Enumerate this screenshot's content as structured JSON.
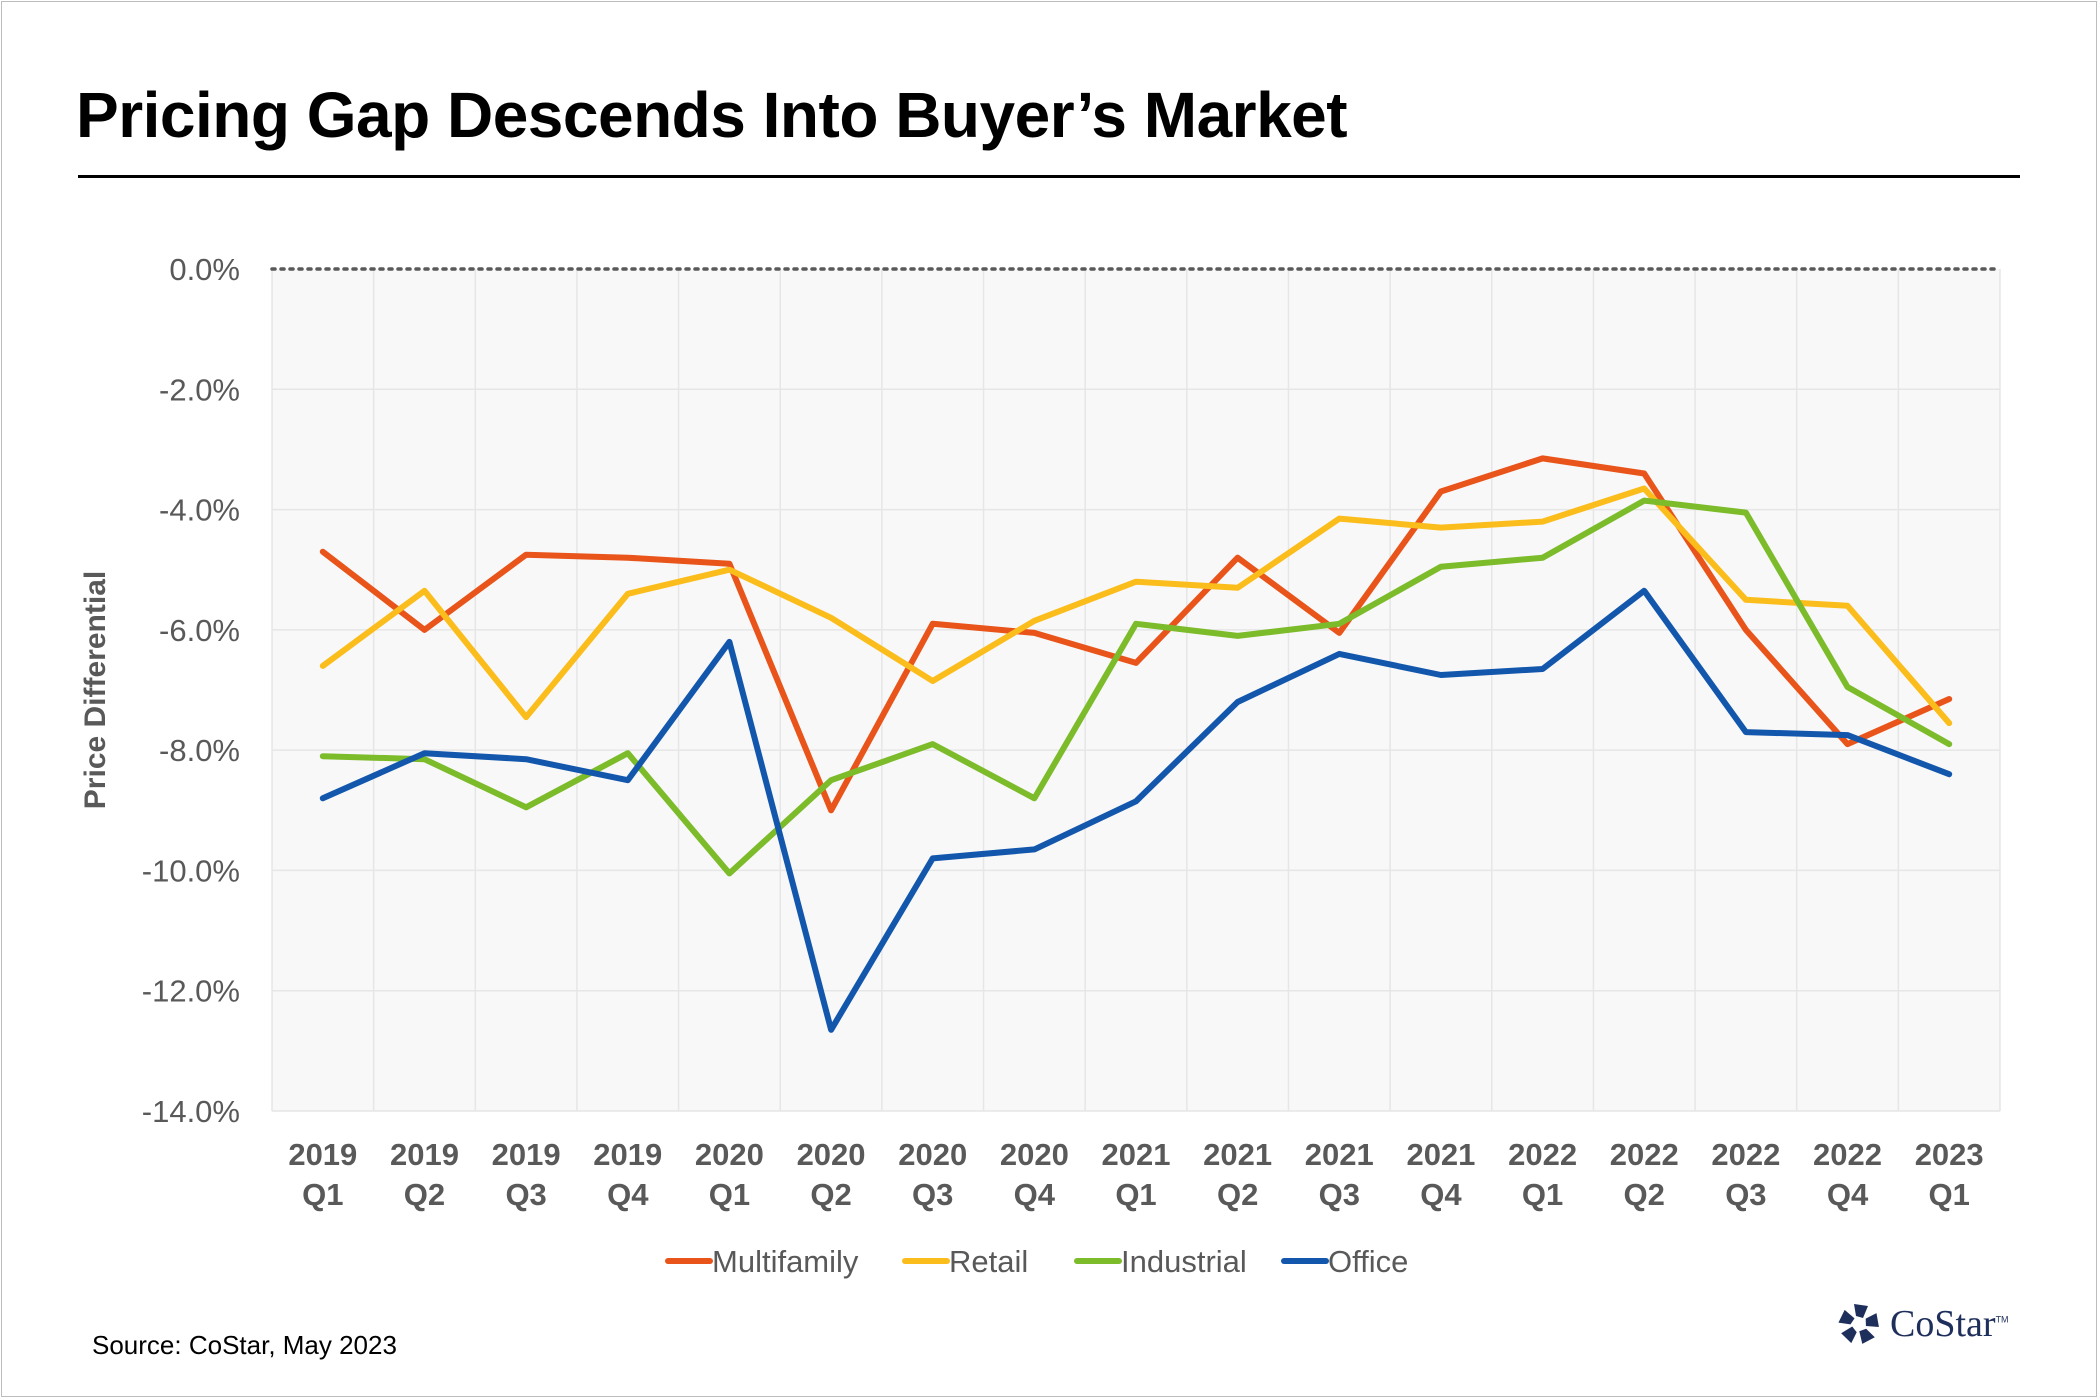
{
  "title": "Pricing Gap Descends Into Buyer’s Market",
  "source": "Source: CoStar, May 2023",
  "logo": {
    "text": "CoStar",
    "tm": "TM",
    "icon": "costar-star-icon"
  },
  "colors": {
    "Multifamily": "#e8541a",
    "Retail": "#fbbd1c",
    "Industrial": "#7cbb2a",
    "Office": "#1357ad",
    "axis_text": "#595959",
    "grid": "#e6e6e6",
    "zero_line": "#595959",
    "plot_bg": "#f8f8f8"
  },
  "chart_data": {
    "type": "line",
    "title": "Pricing Gap Descends Into Buyer’s Market",
    "xlabel": "",
    "ylabel": "Price Differential",
    "ylim": [
      -14,
      0
    ],
    "y_ticks": [
      0,
      -2,
      -4,
      -6,
      -8,
      -10,
      -12,
      -14
    ],
    "y_tick_labels": [
      "0.0%",
      "-2.0%",
      "-4.0%",
      "-6.0%",
      "-8.0%",
      "-10.0%",
      "-12.0%",
      "-14.0%"
    ],
    "categories": [
      [
        "2019",
        "Q1"
      ],
      [
        "2019",
        "Q2"
      ],
      [
        "2019",
        "Q3"
      ],
      [
        "2019",
        "Q4"
      ],
      [
        "2020",
        "Q1"
      ],
      [
        "2020",
        "Q2"
      ],
      [
        "2020",
        "Q3"
      ],
      [
        "2020",
        "Q4"
      ],
      [
        "2021",
        "Q1"
      ],
      [
        "2021",
        "Q2"
      ],
      [
        "2021",
        "Q3"
      ],
      [
        "2021",
        "Q4"
      ],
      [
        "2022",
        "Q1"
      ],
      [
        "2022",
        "Q2"
      ],
      [
        "2022",
        "Q3"
      ],
      [
        "2022",
        "Q4"
      ],
      [
        "2023",
        "Q1"
      ]
    ],
    "grid": true,
    "legend_position": "bottom",
    "series": [
      {
        "name": "Multifamily",
        "values": [
          -4.7,
          -6.0,
          -4.75,
          -4.8,
          -4.9,
          -9.0,
          -5.9,
          -6.05,
          -6.55,
          -4.8,
          -6.05,
          -3.7,
          -3.15,
          -3.4,
          -6.0,
          -7.9,
          -7.15
        ]
      },
      {
        "name": "Retail",
        "values": [
          -6.6,
          -5.35,
          -7.45,
          -5.4,
          -5.0,
          -5.8,
          -6.85,
          -5.85,
          -5.2,
          -5.3,
          -4.15,
          -4.3,
          -4.2,
          -3.65,
          -5.5,
          -5.6,
          -7.55
        ]
      },
      {
        "name": "Industrial",
        "values": [
          -8.1,
          -8.15,
          -8.95,
          -8.05,
          -10.05,
          -8.5,
          -7.9,
          -8.8,
          -5.9,
          -6.1,
          -5.9,
          -4.95,
          -4.8,
          -3.85,
          -4.05,
          -6.95,
          -7.9
        ]
      },
      {
        "name": "Office",
        "values": [
          -8.8,
          -8.05,
          -8.15,
          -8.5,
          -6.2,
          -12.65,
          -9.8,
          -9.65,
          -8.85,
          -7.2,
          -6.4,
          -6.75,
          -6.65,
          -5.35,
          -7.7,
          -7.75,
          -8.4
        ]
      }
    ]
  }
}
